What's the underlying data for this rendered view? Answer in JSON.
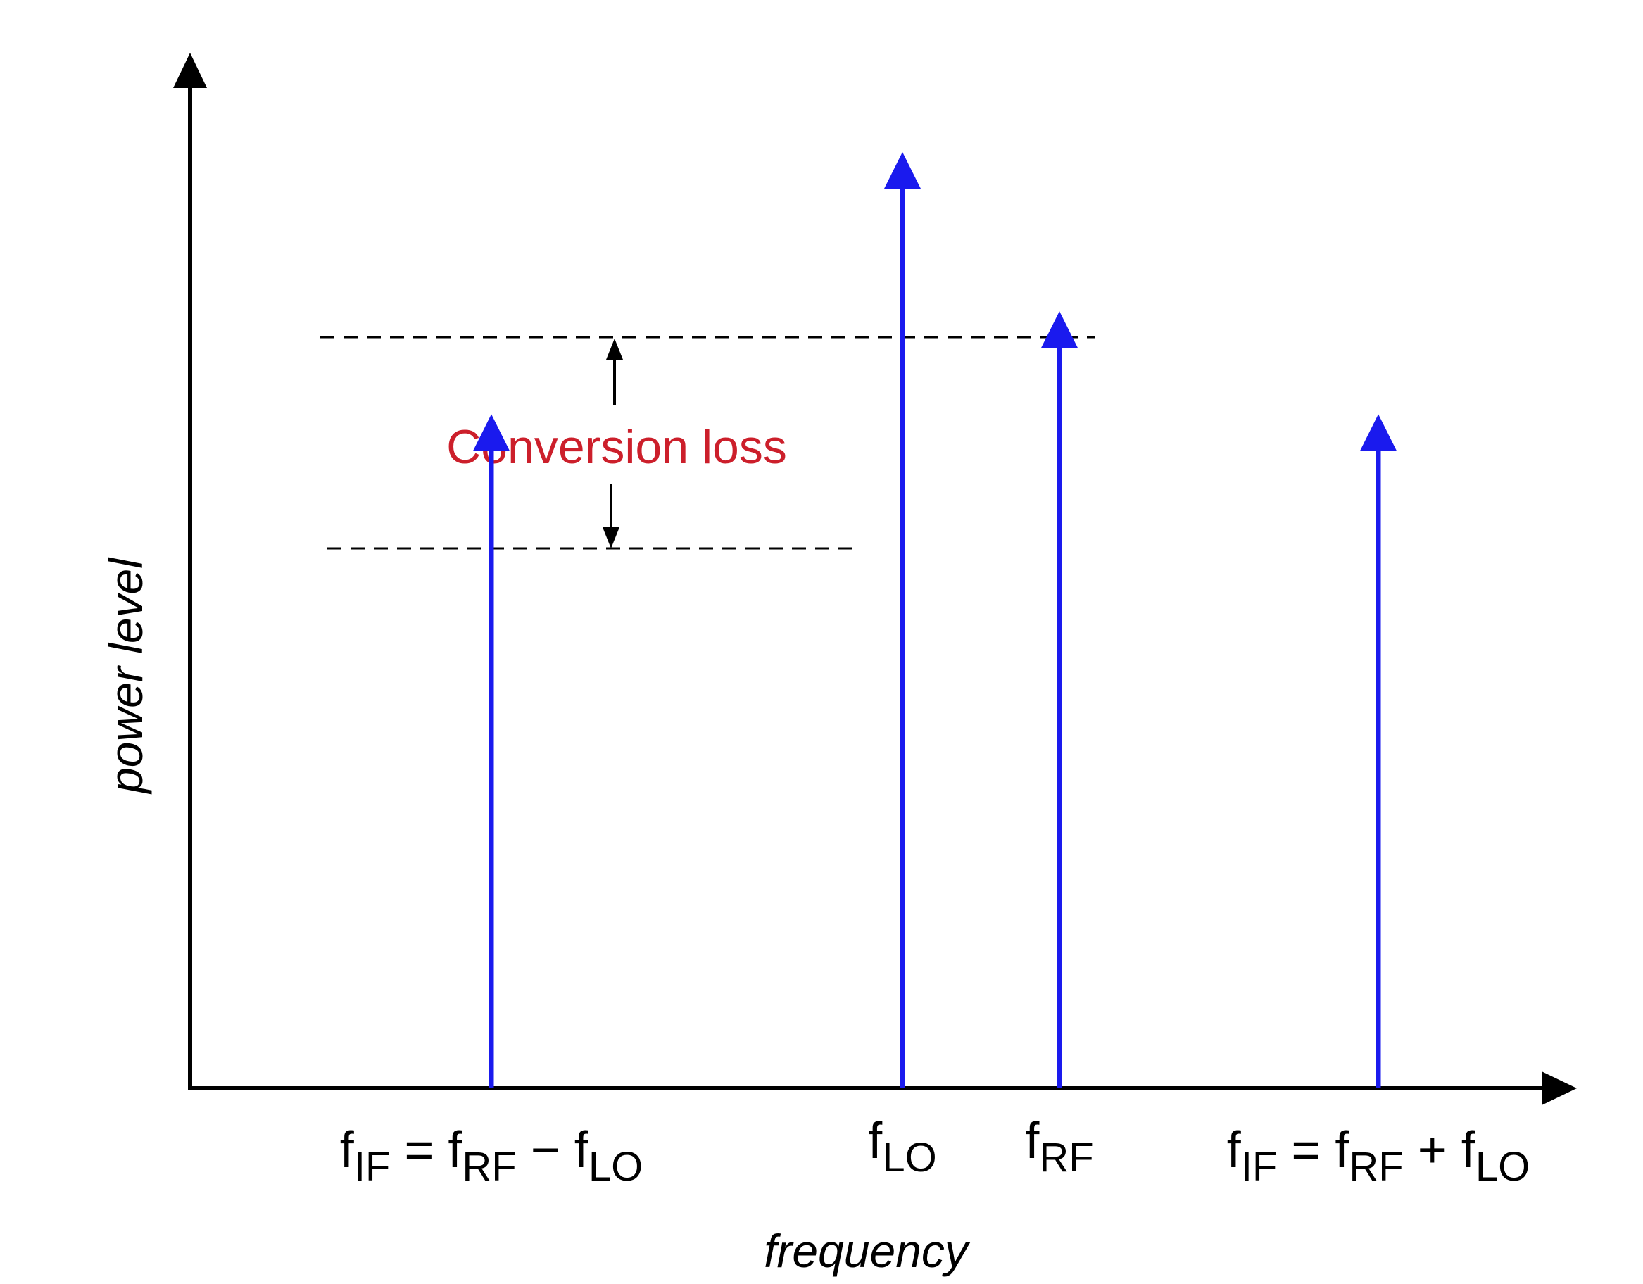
{
  "diagram": {
    "axes": {
      "y_label": "power level",
      "x_label": "frequency"
    },
    "annotation": {
      "text": "Conversion loss"
    },
    "components": [
      {
        "id": "if-difference",
        "label_main": "f",
        "label_sub": "IF",
        "label_rest": [
          {
            "text": " = f",
            "sub": "RF"
          },
          {
            "text": " − f",
            "sub": "LO"
          }
        ],
        "relative_power": 0.72
      },
      {
        "id": "lo",
        "label_main": "f",
        "label_sub": "LO",
        "label_rest": [],
        "relative_power": 1.0
      },
      {
        "id": "rf",
        "label_main": "f",
        "label_sub": "RF",
        "label_rest": [],
        "relative_power": 0.83
      },
      {
        "id": "if-sum",
        "label_main": "f",
        "label_sub": "IF",
        "label_rest": [
          {
            "text": " = f",
            "sub": "RF"
          },
          {
            "text": " + f",
            "sub": "LO"
          }
        ],
        "relative_power": 0.72
      }
    ],
    "colors": {
      "signal": "#1a1aee",
      "axis": "#000000",
      "annotation": "#cc1f2b"
    }
  }
}
